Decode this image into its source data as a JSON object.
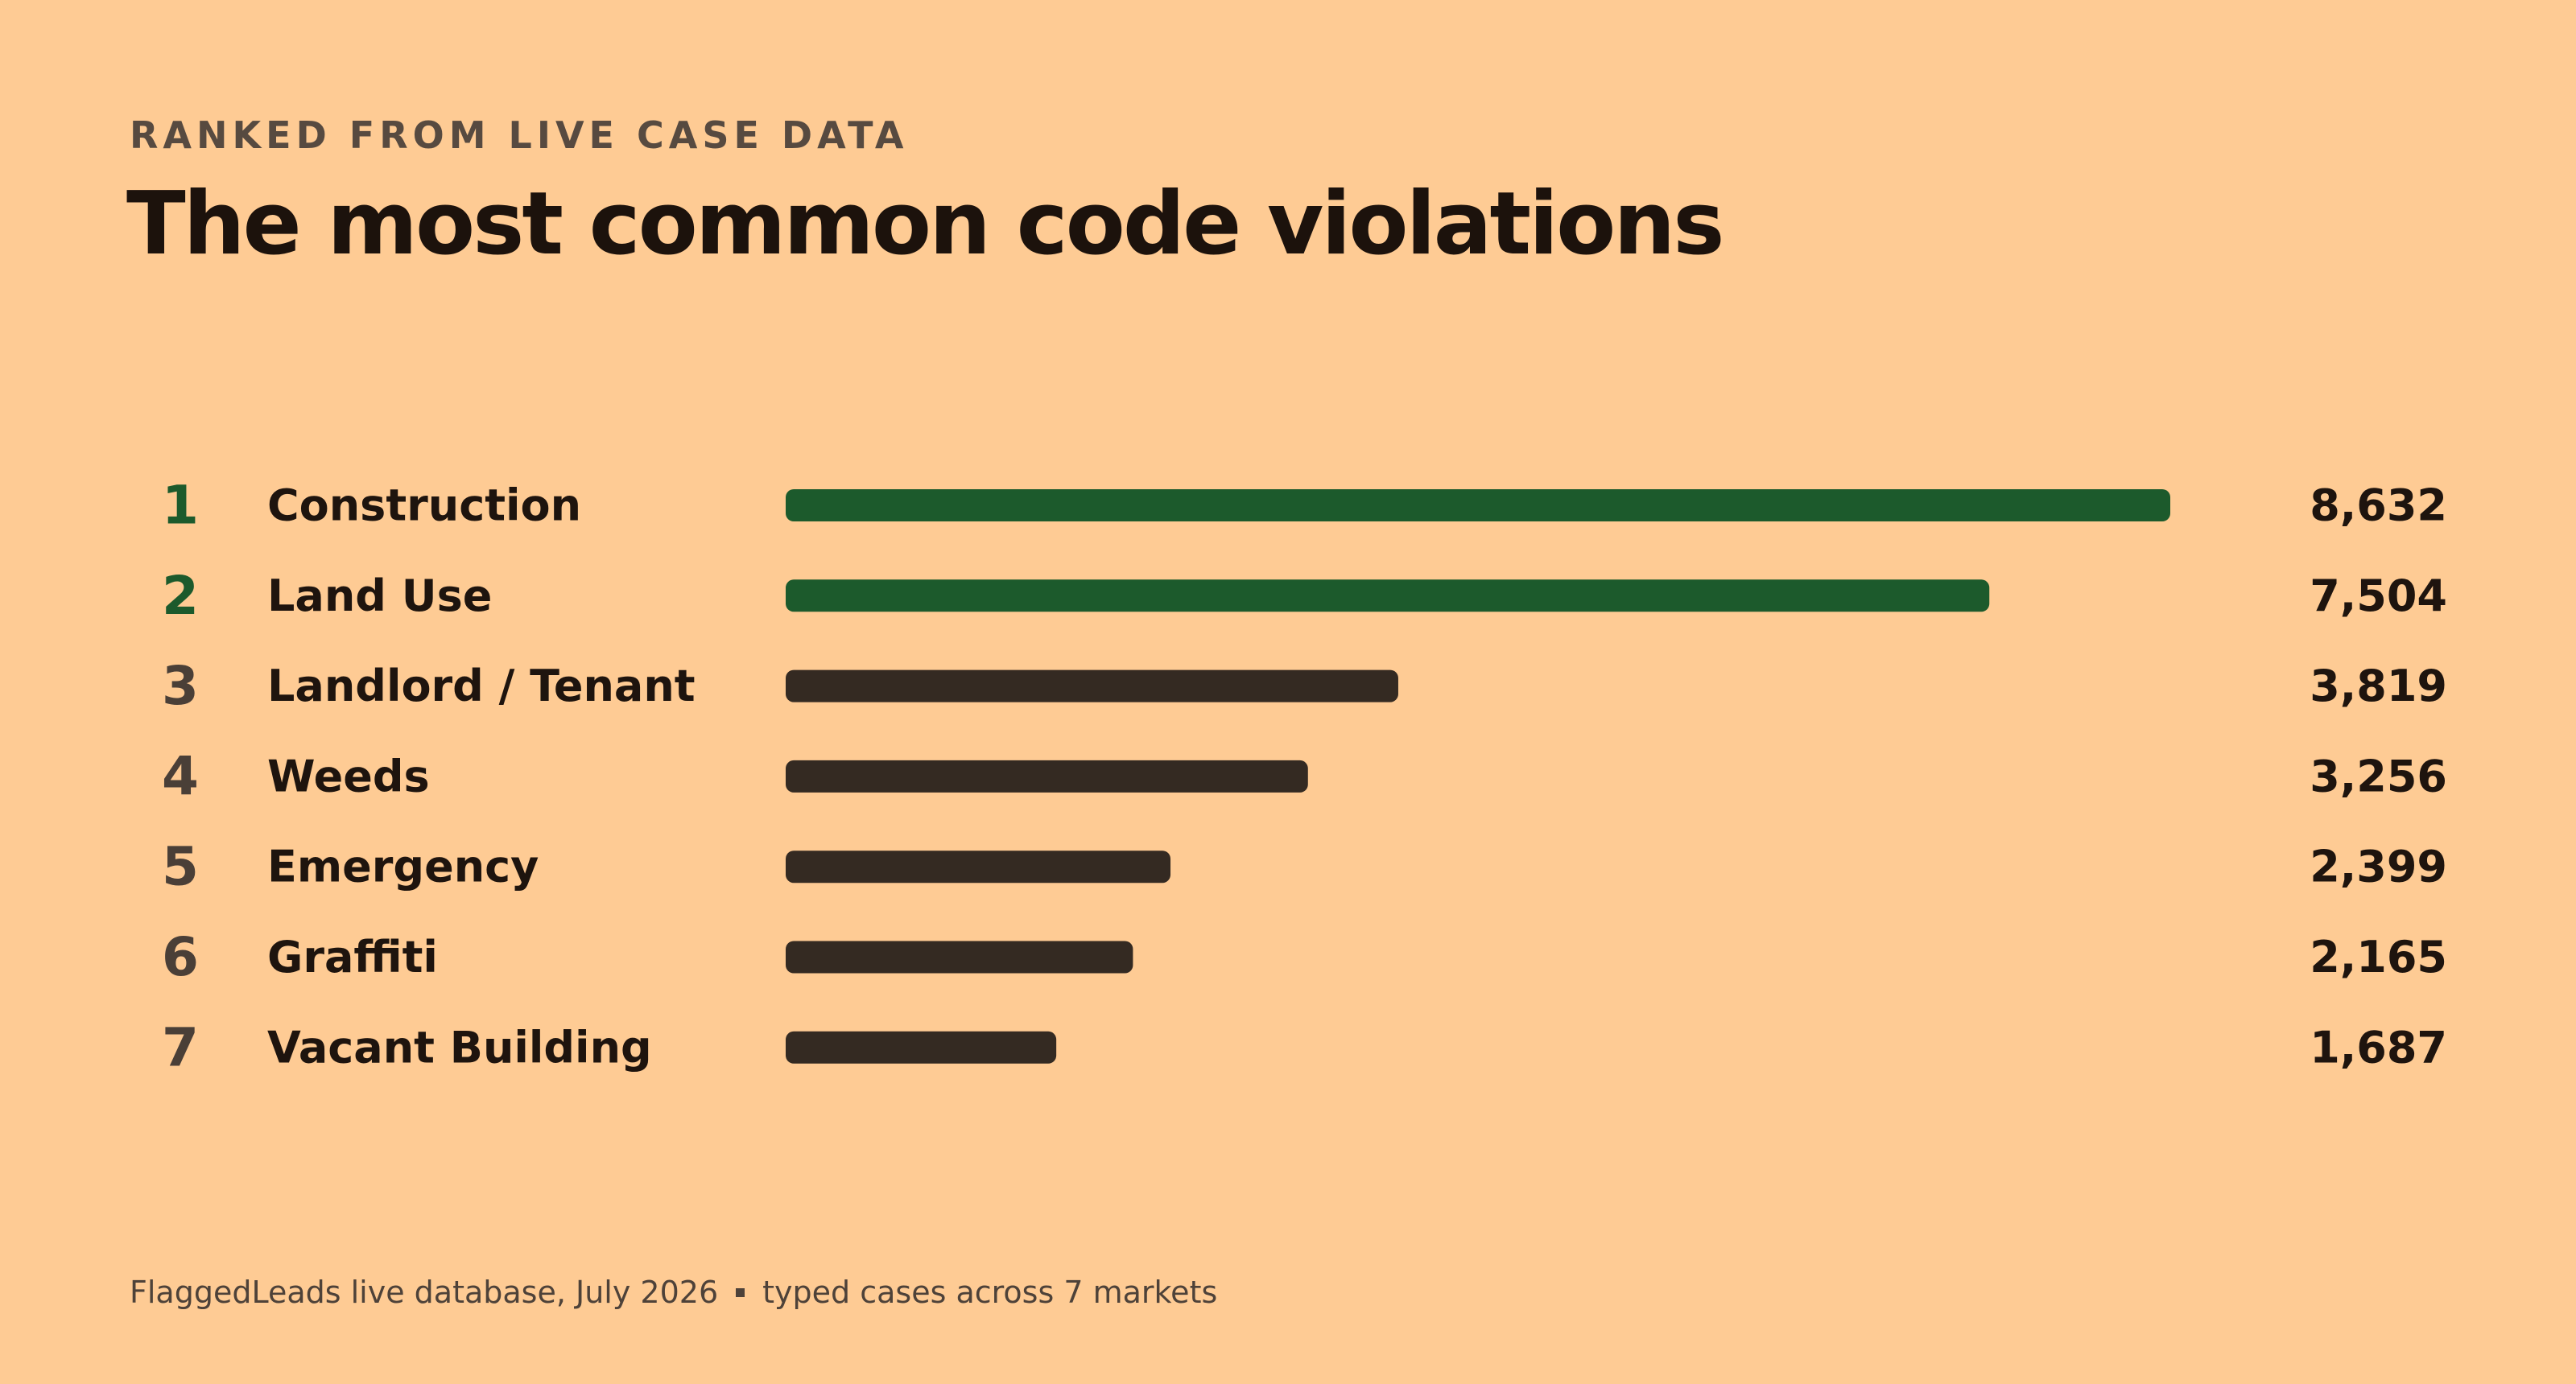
{
  "header": {
    "kicker": "RANKED FROM LIVE CASE DATA",
    "title": "The most common code violations"
  },
  "footer": {
    "source": "FlaggedLeads live database, July 2026",
    "note": "typed cases across 7 markets"
  },
  "colors": {
    "background": "#FECB94",
    "highlight": "#1C5A2C",
    "default_bar": "#342A22",
    "highlight_rank": "#1C5A2C",
    "default_rank": "#4A3F37",
    "text": "#1E140E"
  },
  "chart_data": {
    "type": "bar",
    "orientation": "horizontal",
    "title": "The most common code violations",
    "subtitle": "RANKED FROM LIVE CASE DATA",
    "ranks": [
      "1",
      "2",
      "3",
      "4",
      "5",
      "6",
      "7"
    ],
    "categories": [
      "Construction",
      "Land Use",
      "Landlord / Tenant",
      "Weeds",
      "Emergency",
      "Graffiti",
      "Vacant Building"
    ],
    "values": [
      8632,
      7504,
      3819,
      3256,
      2399,
      2165,
      1687
    ],
    "value_labels": [
      "8,632",
      "7,504",
      "3,819",
      "3,256",
      "2,399",
      "2,165",
      "1,687"
    ],
    "highlighted": [
      true,
      true,
      false,
      false,
      false,
      false,
      false
    ],
    "xlim": [
      0,
      8632
    ],
    "grid": false,
    "legend": "none"
  }
}
